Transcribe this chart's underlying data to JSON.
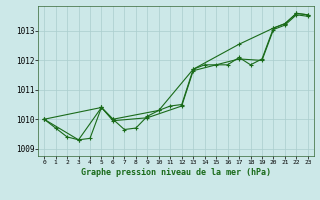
{
  "title": "Graphe pression niveau de la mer (hPa)",
  "bg_color": "#cce8e8",
  "line_color": "#1a6b1a",
  "grid_color": "#aacece",
  "series1": [
    [
      0,
      1010.0
    ],
    [
      1,
      1009.7
    ],
    [
      2,
      1009.4
    ],
    [
      3,
      1009.3
    ],
    [
      4,
      1009.35
    ],
    [
      5,
      1010.4
    ],
    [
      6,
      1010.0
    ],
    [
      7,
      1009.65
    ],
    [
      8,
      1009.7
    ],
    [
      9,
      1010.1
    ],
    [
      10,
      1010.3
    ],
    [
      11,
      1010.45
    ],
    [
      12,
      1010.5
    ],
    [
      13,
      1011.7
    ],
    [
      14,
      1011.85
    ],
    [
      15,
      1011.85
    ],
    [
      16,
      1011.85
    ],
    [
      17,
      1012.1
    ],
    [
      18,
      1011.85
    ],
    [
      19,
      1012.05
    ],
    [
      20,
      1013.1
    ],
    [
      21,
      1013.25
    ],
    [
      22,
      1013.6
    ],
    [
      23,
      1013.55
    ]
  ],
  "series2": [
    [
      0,
      1010.0
    ],
    [
      5,
      1010.4
    ],
    [
      6,
      1010.0
    ],
    [
      10,
      1010.3
    ],
    [
      13,
      1011.7
    ],
    [
      17,
      1012.55
    ],
    [
      20,
      1013.1
    ],
    [
      21,
      1013.25
    ],
    [
      22,
      1013.6
    ],
    [
      23,
      1013.55
    ]
  ],
  "series3": [
    [
      0,
      1010.0
    ],
    [
      3,
      1009.3
    ],
    [
      5,
      1010.4
    ],
    [
      6,
      1009.95
    ],
    [
      9,
      1010.05
    ],
    [
      12,
      1010.45
    ],
    [
      13,
      1011.65
    ],
    [
      17,
      1012.05
    ],
    [
      19,
      1012.0
    ],
    [
      20,
      1013.05
    ],
    [
      21,
      1013.2
    ],
    [
      22,
      1013.55
    ],
    [
      23,
      1013.5
    ]
  ],
  "xlim": [
    -0.5,
    23.5
  ],
  "ylim": [
    1008.75,
    1013.85
  ],
  "yticks": [
    1009,
    1010,
    1011,
    1012,
    1013
  ],
  "xticks": [
    0,
    1,
    2,
    3,
    4,
    5,
    6,
    7,
    8,
    9,
    10,
    11,
    12,
    13,
    14,
    15,
    16,
    17,
    18,
    19,
    20,
    21,
    22,
    23
  ],
  "marker": "+",
  "markersize": 3,
  "linewidth": 0.8
}
